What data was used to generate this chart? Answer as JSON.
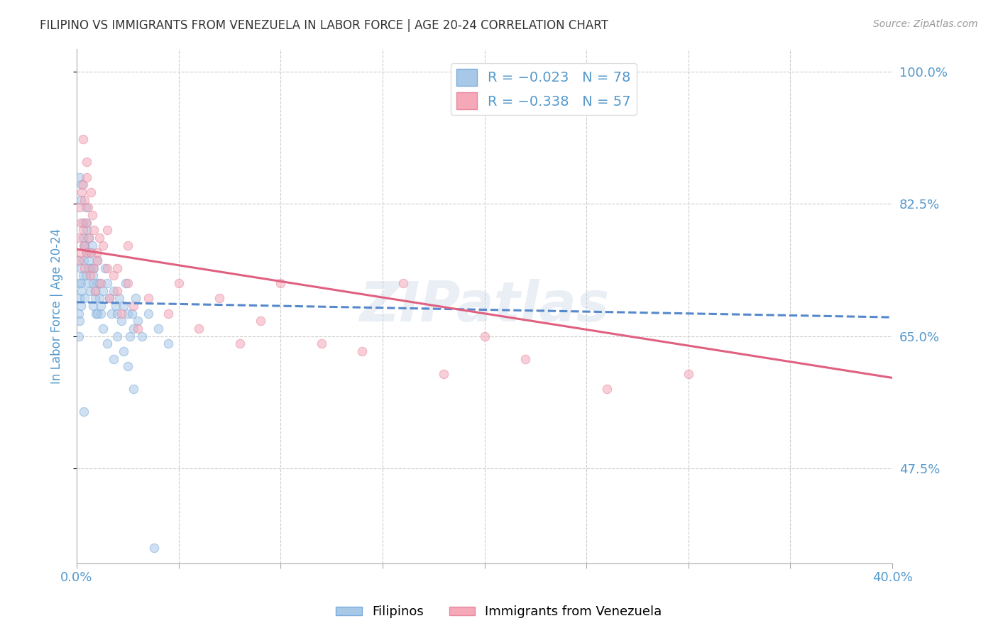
{
  "title": "FILIPINO VS IMMIGRANTS FROM VENEZUELA IN LABOR FORCE | AGE 20-24 CORRELATION CHART",
  "source": "Source: ZipAtlas.com",
  "ylabel": "In Labor Force | Age 20-24",
  "right_yticks": [
    47.5,
    65.0,
    82.5,
    100.0
  ],
  "right_ytick_labels": [
    "47.5%",
    "65.0%",
    "82.5%",
    "100.0%"
  ],
  "xmin": 0.0,
  "xmax": 40.0,
  "ymin": 35.0,
  "ymax": 103.0,
  "filipinos_x": [
    0.1,
    0.1,
    0.1,
    0.1,
    0.15,
    0.15,
    0.2,
    0.2,
    0.2,
    0.25,
    0.3,
    0.3,
    0.35,
    0.4,
    0.4,
    0.45,
    0.5,
    0.5,
    0.55,
    0.6,
    0.6,
    0.65,
    0.7,
    0.75,
    0.8,
    0.8,
    0.85,
    0.9,
    0.95,
    1.0,
    1.0,
    1.1,
    1.2,
    1.3,
    1.4,
    1.5,
    1.6,
    1.7,
    1.8,
    1.9,
    2.0,
    2.1,
    2.2,
    2.3,
    2.4,
    2.5,
    2.6,
    2.7,
    2.8,
    2.9,
    3.0,
    3.2,
    3.5,
    4.0,
    4.5,
    0.2,
    0.3,
    0.4,
    0.5,
    0.6,
    0.7,
    0.8,
    0.9,
    1.0,
    1.1,
    1.2,
    1.3,
    1.5,
    1.8,
    2.0,
    2.3,
    2.5,
    0.15,
    0.25,
    0.45,
    2.8,
    0.35,
    3.8
  ],
  "filipinos_y": [
    75,
    72,
    68,
    65,
    70,
    67,
    72,
    69,
    74,
    71,
    78,
    73,
    75,
    77,
    70,
    73,
    80,
    76,
    72,
    75,
    78,
    71,
    74,
    77,
    72,
    69,
    74,
    71,
    68,
    75,
    72,
    70,
    68,
    71,
    74,
    72,
    70,
    68,
    71,
    69,
    68,
    70,
    67,
    69,
    72,
    68,
    65,
    68,
    66,
    70,
    67,
    65,
    68,
    66,
    64,
    83,
    80,
    77,
    79,
    74,
    76,
    73,
    70,
    68,
    72,
    69,
    66,
    64,
    62,
    65,
    63,
    61,
    86,
    85,
    82,
    58,
    55,
    37
  ],
  "venezuela_x": [
    0.1,
    0.15,
    0.15,
    0.2,
    0.2,
    0.25,
    0.3,
    0.3,
    0.35,
    0.4,
    0.4,
    0.45,
    0.5,
    0.5,
    0.55,
    0.6,
    0.65,
    0.7,
    0.75,
    0.8,
    0.85,
    0.9,
    1.0,
    1.1,
    1.2,
    1.3,
    1.5,
    1.6,
    1.8,
    2.0,
    2.2,
    2.5,
    2.8,
    3.0,
    3.5,
    4.5,
    5.0,
    6.0,
    7.0,
    8.0,
    9.0,
    10.0,
    12.0,
    14.0,
    16.0,
    18.0,
    20.0,
    22.0,
    26.0,
    30.0,
    0.3,
    0.5,
    0.7,
    1.0,
    1.5,
    2.0,
    2.5
  ],
  "venezuela_y": [
    78,
    82,
    75,
    80,
    76,
    84,
    79,
    85,
    77,
    83,
    74,
    80,
    86,
    76,
    82,
    78,
    73,
    76,
    81,
    74,
    79,
    71,
    75,
    78,
    72,
    77,
    74,
    70,
    73,
    71,
    68,
    72,
    69,
    66,
    70,
    68,
    72,
    66,
    70,
    64,
    67,
    72,
    64,
    63,
    72,
    60,
    65,
    62,
    58,
    60,
    91,
    88,
    84,
    76,
    79,
    74,
    77
  ],
  "blue_line_x": [
    0.0,
    40.0
  ],
  "blue_line_y": [
    69.5,
    67.5
  ],
  "pink_line_x": [
    0.0,
    40.0
  ],
  "pink_line_y": [
    76.5,
    59.5
  ],
  "watermark": "ZIPatlas",
  "scatter_alpha": 0.55,
  "scatter_size": 80,
  "blue_color": "#a8c8e8",
  "pink_color": "#f4a8b8",
  "blue_edge": "#7aacda",
  "pink_edge": "#e888a0",
  "bg_color": "#ffffff",
  "grid_color": "#cccccc",
  "title_color": "#333333",
  "axis_label_color": "#5599cc",
  "right_axis_color": "#5599cc",
  "blue_line_color": "#5588cc",
  "pink_line_color": "#e06080"
}
